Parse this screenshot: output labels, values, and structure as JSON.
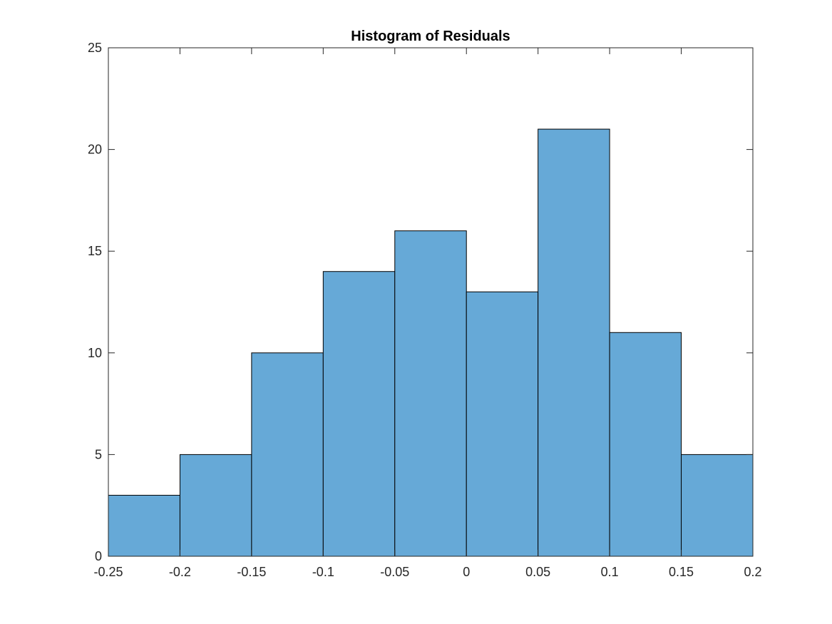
{
  "chart_data": {
    "type": "bar",
    "title": "Histogram of Residuals",
    "xlabel": "",
    "ylabel": "",
    "bin_edges": [
      -0.25,
      -0.2,
      -0.15,
      -0.1,
      -0.05,
      0,
      0.05,
      0.1,
      0.15,
      0.2
    ],
    "values": [
      3,
      5,
      10,
      14,
      16,
      13,
      21,
      11,
      5
    ],
    "xlim": [
      -0.25,
      0.2
    ],
    "ylim": [
      0,
      25
    ],
    "x_ticks": [
      -0.25,
      -0.2,
      -0.15,
      -0.1,
      -0.05,
      0,
      0.05,
      0.1,
      0.15,
      0.2
    ],
    "x_tick_labels": [
      "-0.25",
      "-0.2",
      "-0.15",
      "-0.1",
      "-0.05",
      "0",
      "0.05",
      "0.1",
      "0.15",
      "0.2"
    ],
    "y_ticks": [
      0,
      5,
      10,
      15,
      20,
      25
    ],
    "y_tick_labels": [
      "0",
      "5",
      "10",
      "15",
      "20",
      "25"
    ],
    "grid": false,
    "bar_color": "#66a9d7",
    "edge_color": "#000000"
  }
}
